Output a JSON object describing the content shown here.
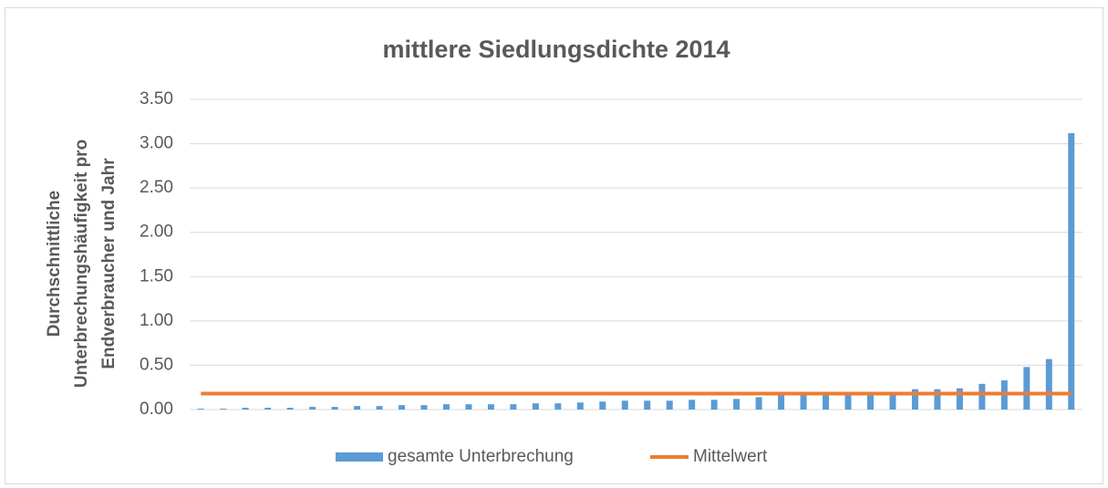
{
  "chart_data": {
    "type": "bar",
    "title": "mittlere Siedlungsdichte 2014",
    "ylabel": [
      "Durchschnittliche",
      "Unterbrechungshäufigkeit pro",
      "Endverbraucher und Jahr"
    ],
    "categories": [
      null,
      null,
      null,
      null,
      null,
      null,
      null,
      null,
      null,
      null,
      null,
      null,
      null,
      null,
      null,
      null,
      null,
      null,
      null,
      null,
      null,
      null,
      null,
      null,
      null,
      null,
      null,
      null,
      null,
      null,
      null,
      null,
      null,
      null,
      null,
      null,
      null,
      null,
      null,
      null
    ],
    "series": [
      {
        "name": "gesamte Unterbrechung",
        "type": "bar",
        "color": "#5b9bd5",
        "values": [
          0.01,
          0.01,
          0.02,
          0.02,
          0.02,
          0.03,
          0.03,
          0.04,
          0.04,
          0.05,
          0.05,
          0.06,
          0.06,
          0.06,
          0.06,
          0.07,
          0.07,
          0.08,
          0.09,
          0.1,
          0.1,
          0.1,
          0.11,
          0.11,
          0.12,
          0.14,
          0.16,
          0.17,
          0.17,
          0.17,
          0.17,
          0.18,
          0.23,
          0.23,
          0.24,
          0.29,
          0.33,
          0.48,
          0.57,
          3.12
        ]
      },
      {
        "name": "Mittelwert",
        "type": "line",
        "color": "#ed7d31",
        "values": [
          0.18,
          0.18,
          0.18,
          0.18,
          0.18,
          0.18,
          0.18,
          0.18,
          0.18,
          0.18,
          0.18,
          0.18,
          0.18,
          0.18,
          0.18,
          0.18,
          0.18,
          0.18,
          0.18,
          0.18,
          0.18,
          0.18,
          0.18,
          0.18,
          0.18,
          0.18,
          0.18,
          0.18,
          0.18,
          0.18,
          0.18,
          0.18,
          0.18,
          0.18,
          0.18,
          0.18,
          0.18,
          0.18,
          0.18,
          0.18
        ]
      }
    ],
    "ylim": [
      0,
      3.5
    ],
    "yticks": [
      {
        "value": 0,
        "label": "0.00"
      },
      {
        "value": 0.5,
        "label": "0.50"
      },
      {
        "value": 1,
        "label": "1.00"
      },
      {
        "value": 1.5,
        "label": "1.50"
      },
      {
        "value": 2,
        "label": "2.00"
      },
      {
        "value": 2.5,
        "label": "2.50"
      },
      {
        "value": 3,
        "label": "3.00"
      },
      {
        "value": 3.5,
        "label": "3.50"
      }
    ],
    "grid": true,
    "legend": "bottom"
  }
}
